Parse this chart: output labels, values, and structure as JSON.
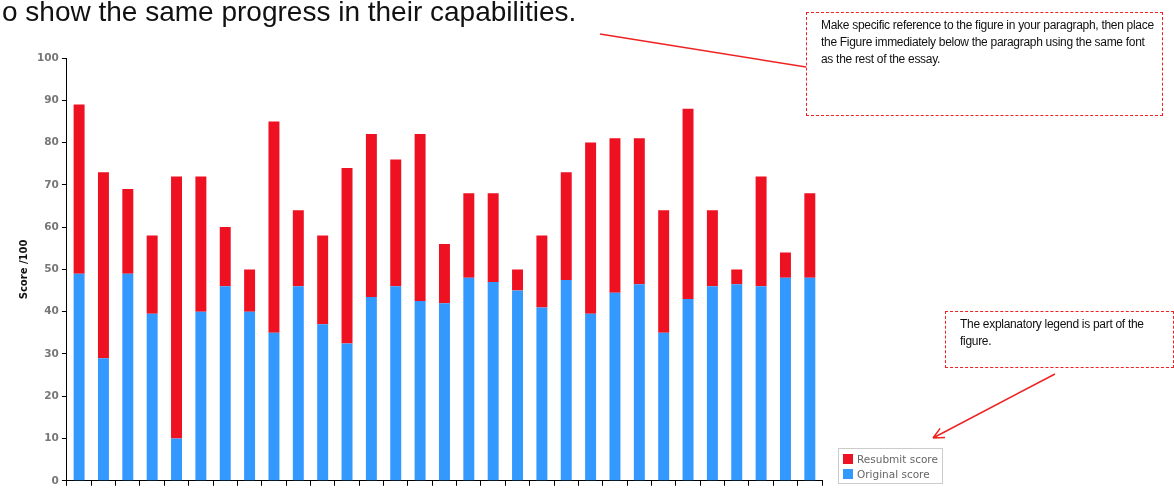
{
  "chart_data": {
    "type": "bar",
    "stacked": true,
    "ylabel": "Score /100",
    "categories": [
      null,
      null,
      null,
      null,
      null,
      null,
      null,
      null,
      null,
      null,
      null,
      null,
      null,
      null,
      null,
      null,
      null,
      null,
      null,
      null,
      null,
      null,
      null,
      null,
      null,
      null,
      null,
      null,
      null,
      null,
      null
    ],
    "series": [
      {
        "name": "Original score",
        "color": "#3399ff",
        "values": [
          49,
          29,
          49,
          39.5,
          10,
          40,
          46,
          40,
          35,
          46,
          37,
          32.5,
          43.5,
          46,
          42.5,
          42,
          48,
          47,
          45,
          41,
          47.5,
          39.5,
          44.5,
          46.5,
          35,
          43,
          46,
          46.5,
          46,
          48,
          48
        ]
      },
      {
        "name": "Resubmit score",
        "color": "#ee1122",
        "values": [
          40,
          44,
          20,
          18.5,
          62,
          32,
          14,
          10,
          50,
          18,
          21,
          41.5,
          38.5,
          30,
          39.5,
          14,
          20,
          21,
          5,
          17,
          25.5,
          40.5,
          36.5,
          34.5,
          29,
          45,
          18,
          3.5,
          26,
          6,
          20
        ]
      }
    ],
    "ylim": [
      0,
      100
    ],
    "yticks": [
      0,
      10,
      20,
      30,
      40,
      50,
      60,
      70,
      80,
      90,
      100
    ],
    "grid": false,
    "legend": "bottom right",
    "annotations": [
      "o show the same progress in their capabilities.",
      "Make specific reference to the figure in your paragraph, then place the Figure immediately below the paragraph using the same font as the rest of the essay.",
      "The explanatory legend is part of the figure."
    ]
  }
}
